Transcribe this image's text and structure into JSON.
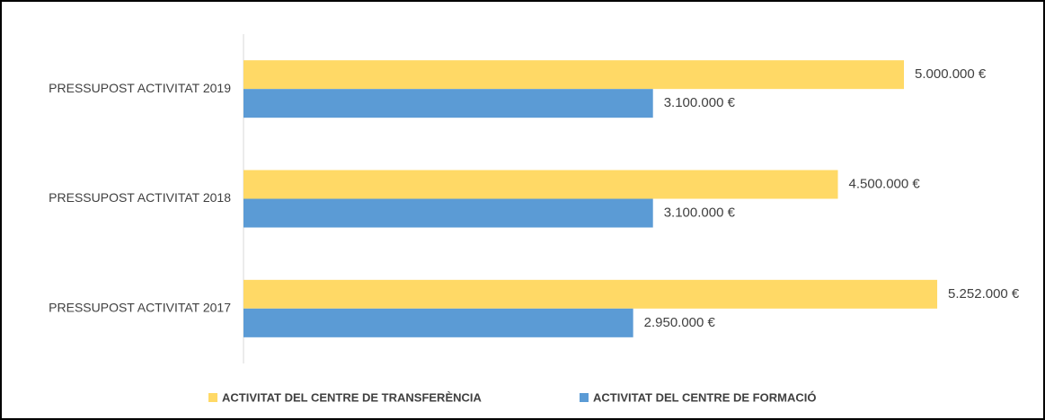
{
  "chart_data": {
    "type": "hbar",
    "categories": [
      "PRESSUPOST ACTIVITAT 2019",
      "PRESSUPOST ACTIVITAT 2018",
      "PRESSUPOST ACTIVITAT 2017"
    ],
    "series": [
      {
        "name": "ACTIVITAT DEL CENTRE DE TRANSFERÈNCIA",
        "color": "#FFD966",
        "values": [
          5000000,
          4500000,
          5252000
        ],
        "value_labels": [
          "5.000.000 €",
          "4.500.000 €",
          "5.252.000 €"
        ]
      },
      {
        "name": "ACTIVITAT DEL CENTRE DE FORMACIÓ",
        "color": "#5B9BD5",
        "values": [
          3100000,
          3100000,
          2950000
        ],
        "value_labels": [
          "3.100.000 €",
          "3.100.000 €",
          "2.950.000 €"
        ]
      }
    ],
    "xlim": [
      0,
      6000000
    ],
    "legend": "bottom"
  }
}
